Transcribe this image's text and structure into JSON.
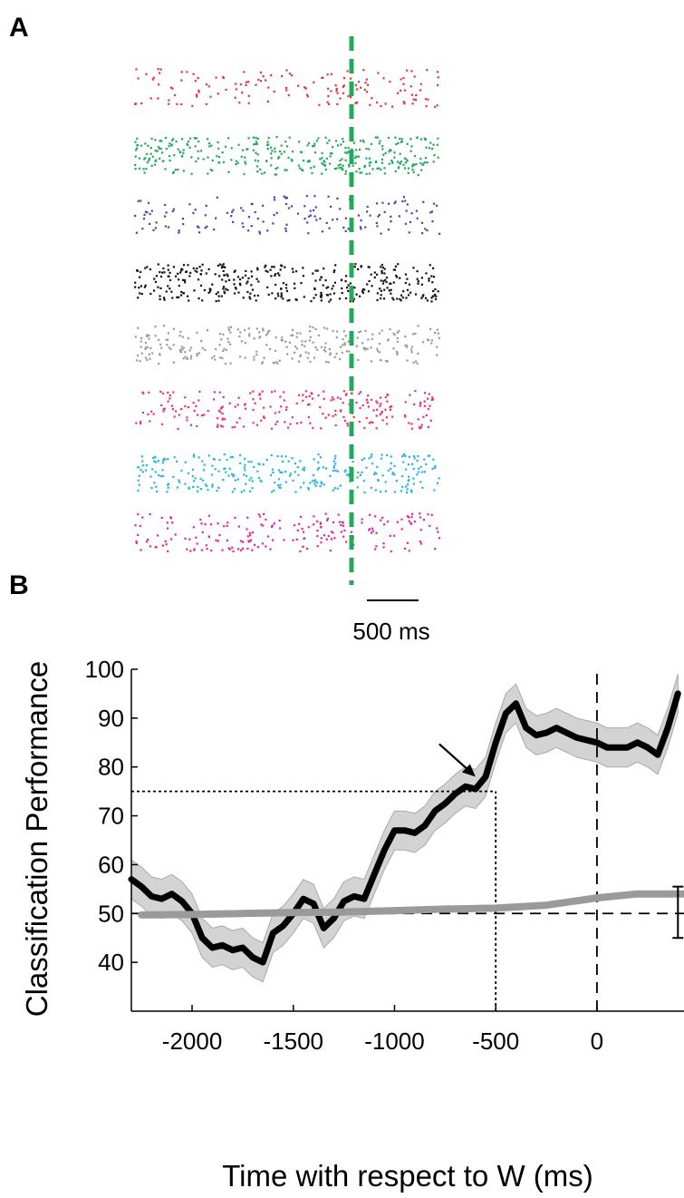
{
  "panels": {
    "a_label": "A",
    "b_label": "B"
  },
  "raster": {
    "neurons": [
      {
        "color": "#e8323a",
        "density": 0.35
      },
      {
        "color": "#22a95a",
        "density": 1.0
      },
      {
        "color": "#3b49b0",
        "density": 0.35
      },
      {
        "color": "#111111",
        "density": 1.0
      },
      {
        "color": "#9b9b9b",
        "density": 0.7
      },
      {
        "color": "#ee3366",
        "density": 0.6
      },
      {
        "color": "#22b5e8",
        "density": 0.8
      },
      {
        "color": "#e5259c",
        "density": 0.5
      }
    ],
    "w_marker_color": "#22a95a",
    "scale_bar_label": "500 ms"
  },
  "chart_data": {
    "type": "line",
    "xlabel": "Time with respect to W (ms)",
    "ylabel": "Classification Performance",
    "xlim": [
      -2300,
      430
    ],
    "ylim": [
      30,
      100
    ],
    "xticks": [
      -2000,
      -1500,
      -1000,
      -500,
      0
    ],
    "xtick_labels": [
      "-2000",
      "-1500",
      "-1000",
      "-500",
      "0"
    ],
    "yticks": [
      40,
      50,
      60,
      70,
      80,
      90,
      100
    ],
    "ytick_labels": [
      "40",
      "50",
      "60",
      "70",
      "80",
      "90",
      "100"
    ],
    "series": [
      {
        "color": "#000000",
        "band_color": "#d3d3d3",
        "x": [
          -2300,
          -2250,
          -2200,
          -2150,
          -2100,
          -2050,
          -2000,
          -1950,
          -1900,
          -1850,
          -1800,
          -1750,
          -1700,
          -1650,
          -1600,
          -1550,
          -1500,
          -1450,
          -1400,
          -1350,
          -1300,
          -1250,
          -1200,
          -1150,
          -1100,
          -1050,
          -1000,
          -950,
          -900,
          -850,
          -800,
          -750,
          -700,
          -650,
          -600,
          -550,
          -500,
          -450,
          -400,
          -350,
          -300,
          -250,
          -200,
          -150,
          -100,
          -50,
          0,
          50,
          100,
          150,
          200,
          250,
          300,
          350,
          400
        ],
        "y": [
          57,
          55.5,
          53.5,
          53,
          54,
          52.5,
          50,
          45,
          43,
          43.5,
          42.5,
          43,
          41,
          40,
          46,
          47.5,
          50,
          53,
          52,
          47,
          49,
          52.5,
          53.5,
          53,
          58,
          63,
          67,
          67,
          66.5,
          68,
          71,
          72.5,
          74.5,
          76,
          75.5,
          78,
          85,
          91,
          93,
          88,
          86.5,
          87,
          88,
          87,
          86,
          85.5,
          85,
          84,
          84,
          84,
          85,
          84,
          82.5,
          88,
          95
        ],
        "band": 4
      },
      {
        "color": "#9a9a9a",
        "x": [
          -2250,
          -2000,
          -1750,
          -1500,
          -1250,
          -1000,
          -750,
          -500,
          -250,
          0,
          200,
          430
        ],
        "y": [
          49.7,
          49.8,
          50.0,
          50.2,
          50.3,
          50.6,
          50.9,
          51.1,
          51.7,
          53.2,
          54,
          54
        ]
      }
    ],
    "reference_lines": [
      {
        "axis": "y",
        "value": 50,
        "style": "dashed"
      },
      {
        "axis": "x",
        "value": 0,
        "style": "dashed"
      },
      {
        "axis": "y",
        "value": 75,
        "style": "dotted",
        "x_end": -500
      },
      {
        "axis": "x",
        "value": -500,
        "style": "dotted",
        "y_end": 75
      }
    ],
    "arrow_target": {
      "x": -600,
      "y": 78
    },
    "chance_error_bar": {
      "x": 400,
      "low": 45,
      "high": 55.5
    }
  }
}
